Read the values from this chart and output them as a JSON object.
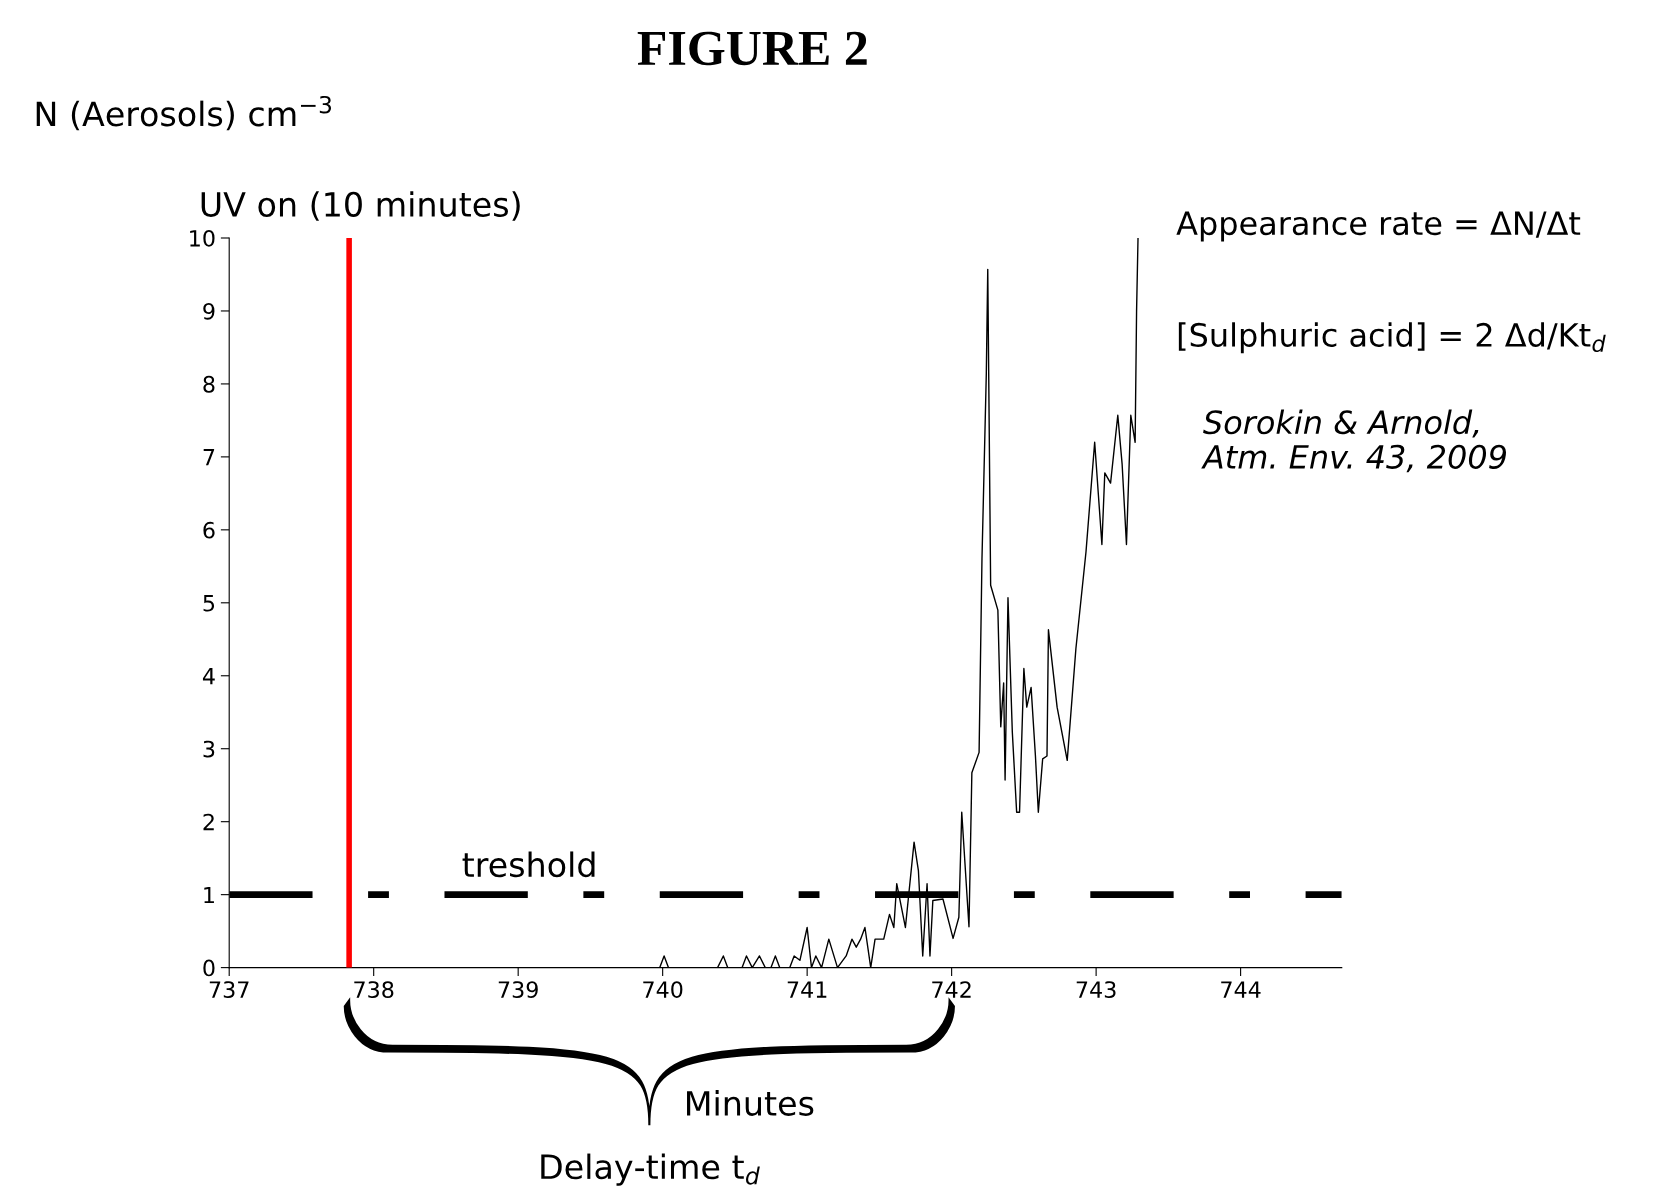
{
  "chart_data": {
    "type": "line",
    "title": "FIGURE 2",
    "ylabel": "N (Aerosols) cm$^{−3}$",
    "xlabel": "Minutes",
    "xlim": [
      737,
      744.7
    ],
    "xticks": [
      737,
      738,
      739,
      740,
      741,
      742,
      743,
      744
    ],
    "ylim": [
      0,
      10
    ],
    "yticks": [
      0,
      1,
      2,
      3,
      4,
      5,
      6,
      7,
      8,
      9,
      10
    ],
    "grid": false,
    "marker": "none",
    "line_style": "solid",
    "series": [
      {
        "color": "#000000",
        "x": [
          739.9,
          739.98,
          740.01,
          740.04,
          740.38,
          740.42,
          740.45,
          740.55,
          740.58,
          740.62,
          740.67,
          740.71,
          740.75,
          740.78,
          740.81,
          740.88,
          740.91,
          740.95,
          741.0,
          741.03,
          741.06,
          741.1,
          741.15,
          741.21,
          741.27,
          741.31,
          741.34,
          741.37,
          741.4,
          741.44,
          741.47,
          741.53,
          741.57,
          741.6,
          741.62,
          741.68,
          741.74,
          741.77,
          741.8,
          741.83,
          741.85,
          741.87,
          741.94,
          742.01,
          742.05,
          742.07,
          742.12,
          742.14,
          742.19,
          742.21,
          742.24,
          742.25,
          742.27,
          742.32,
          742.34,
          742.36,
          742.37,
          742.39,
          742.42,
          742.45,
          742.47,
          742.5,
          742.52,
          742.55,
          742.58,
          742.6,
          742.63,
          742.66,
          742.67,
          742.73,
          742.8,
          742.86,
          742.93,
          742.99,
          743.04,
          743.06,
          743.1,
          743.15,
          743.18,
          743.21,
          743.24,
          743.27,
          743.28,
          743.29
        ],
        "values": [
          0,
          0,
          0.16,
          0,
          0,
          0.16,
          0,
          0,
          0.16,
          0,
          0.16,
          0,
          0,
          0.16,
          0,
          0,
          0.16,
          0.1,
          0.55,
          0,
          0.16,
          0,
          0.39,
          0,
          0.16,
          0.39,
          0.28,
          0.39,
          0.55,
          0,
          0.39,
          0.39,
          0.73,
          0.55,
          1.15,
          0.55,
          1.72,
          1.33,
          0.16,
          1.15,
          0.16,
          0.92,
          0.94,
          0.4,
          0.69,
          2.13,
          0.56,
          2.67,
          2.95,
          5.6,
          8.14,
          9.57,
          5.24,
          4.9,
          3.3,
          3.9,
          2.57,
          5.07,
          3.23,
          2.13,
          2.13,
          4.1,
          3.57,
          3.84,
          2.9,
          2.13,
          2.86,
          2.9,
          4.63,
          3.57,
          2.84,
          4.37,
          5.7,
          7.2,
          5.8,
          6.78,
          6.64,
          7.57,
          6.9,
          5.8,
          7.57,
          7.2,
          9.0,
          10.0
        ]
      }
    ],
    "ref_lines": [
      {
        "axis": "x",
        "value": 737.83,
        "label": "UV on (10 minutes)",
        "color": "#ff0000",
        "line_style": "solid"
      },
      {
        "axis": "y",
        "value": 1,
        "label": "treshold",
        "color": "#000000",
        "line_style": "dashdot"
      }
    ],
    "annotations": [
      "Delay-time t$_{d}$",
      "Appearance rate = ΔN/Δt",
      "[Sulphuric acid] = 2 Δd/Kt$_{d}$",
      "Sorokin & Arnold,\nAtm. Env. 43, 2009"
    ]
  }
}
